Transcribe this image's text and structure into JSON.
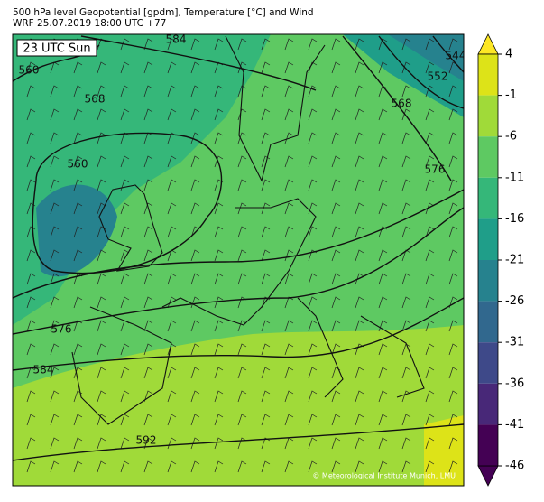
{
  "title": "500 hPa level Geopotential [gpdm], Temperature [°C] and Wind",
  "subtitle": "WRF 25.07.2019 18:00 UTC +77",
  "time_label": "23 UTC Sun",
  "contour_labels": [
    "584",
    "560",
    "568",
    "560",
    "552",
    "544",
    "568",
    "576",
    "576",
    "584",
    "592"
  ],
  "colorbar": {
    "ticks": [
      4,
      -1,
      -6,
      -11,
      -16,
      -21,
      -26,
      -31,
      -36,
      -41,
      -46
    ],
    "colors": [
      "#dde318",
      "#a0da39",
      "#5ec962",
      "#35b779",
      "#1f9e89",
      "#26828e",
      "#31688e",
      "#3e4989",
      "#482878",
      "#440154"
    ],
    "over_color": "#fde725",
    "under_color": "#440154"
  },
  "credit": "© Meteorological Institute Munich, LMU"
}
